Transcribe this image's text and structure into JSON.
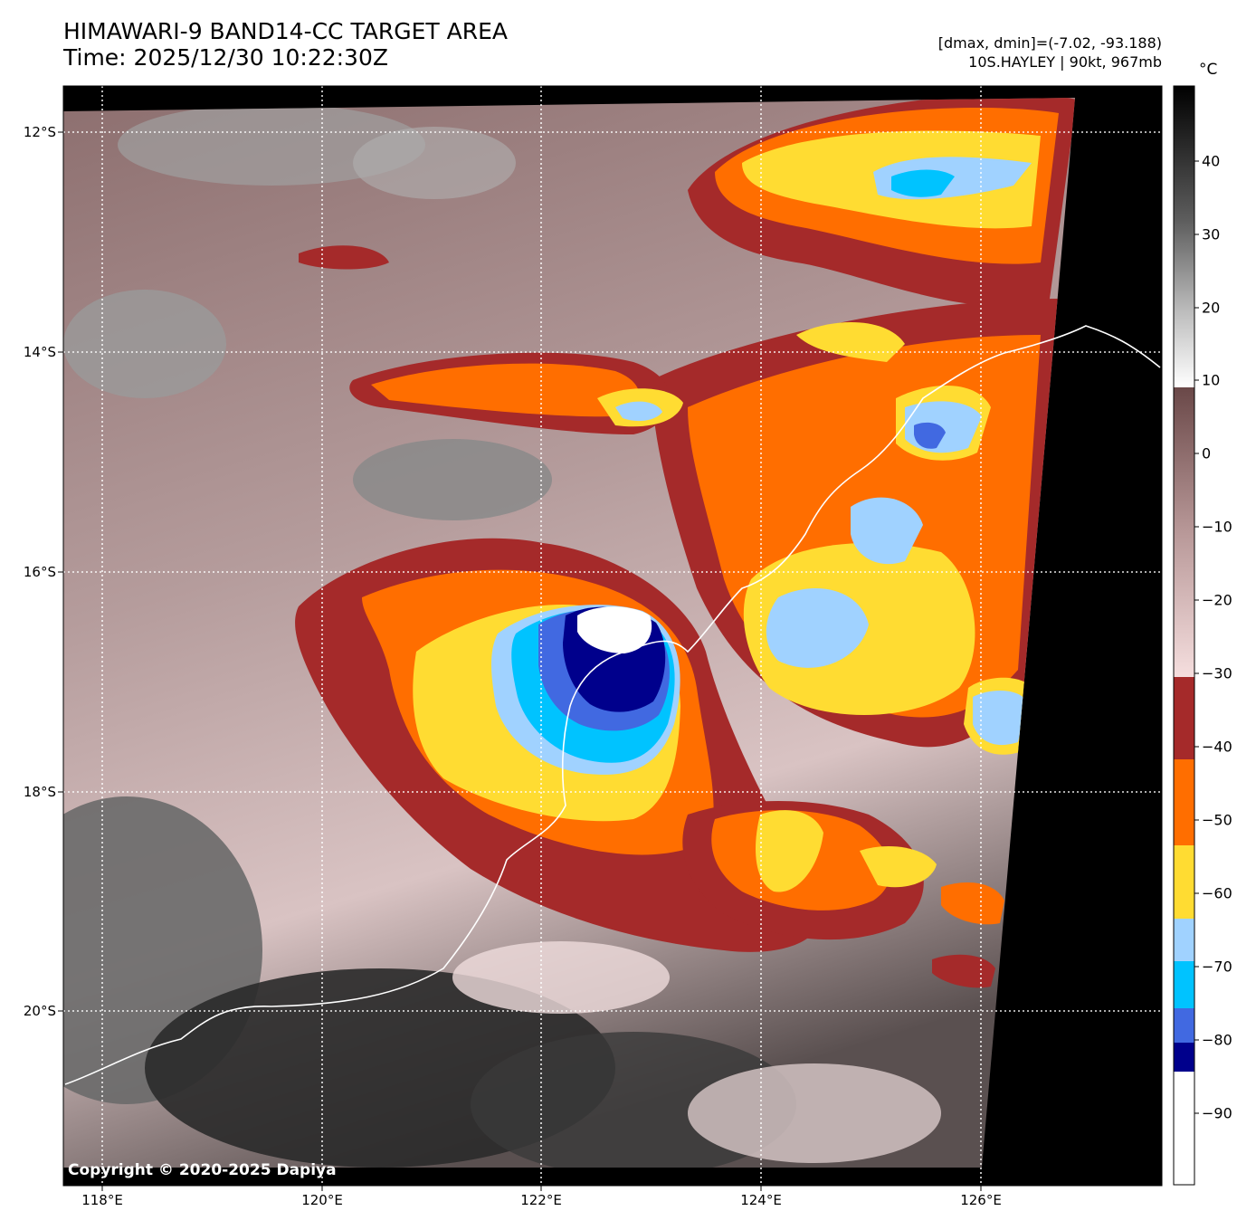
{
  "header": {
    "title_line1": "HIMAWARI-9 BAND14-CC TARGET AREA",
    "title_line2": "Time: 2025/12/30 10:22:30Z",
    "stats_line": "[dmax, dmin]=(-7.02, -93.188)",
    "storm_line": "10S.HAYLEY | 90kt, 967mb"
  },
  "map": {
    "lat_ticks": [
      "12°S",
      "14°S",
      "16°S",
      "18°S",
      "20°S"
    ],
    "lon_ticks": [
      "118°E",
      "120°E",
      "122°E",
      "124°E",
      "126°E"
    ],
    "copyright": "Copyright © 2020-2025 Dapiya"
  },
  "colorbar": {
    "unit": "°C",
    "labels": [
      "40",
      "30",
      "20",
      "10",
      "0",
      "−10",
      "−20",
      "−30",
      "−40",
      "−50",
      "−60",
      "−70",
      "−80",
      "−90"
    ],
    "colors": {
      "warm_black": "#000000",
      "warm_white": "#ffffff",
      "brown": "#6e4c4c",
      "pink": "#f2d7d7",
      "dark_red": "#a52a2a",
      "orange": "#ff6e00",
      "yellow": "#ffdc32",
      "light_blue": "#a0d2ff",
      "cyan": "#00c3ff",
      "royal_blue": "#4169e1",
      "navy": "#00008c",
      "coldest": "#ffffff"
    }
  }
}
